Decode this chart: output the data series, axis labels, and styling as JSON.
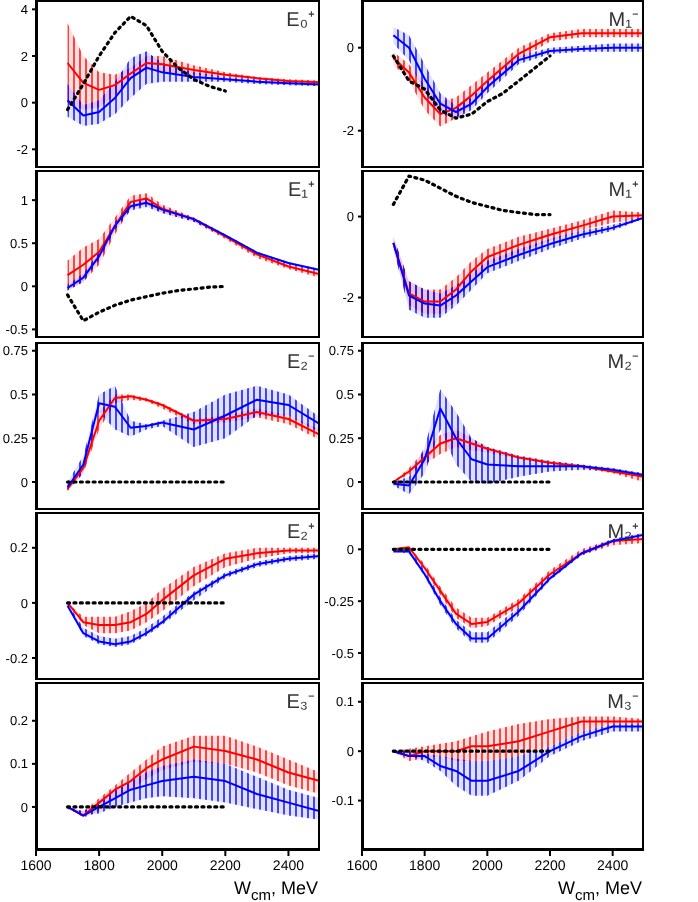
{
  "chart_data": [
    {
      "type": "line",
      "title": "E₀⁺",
      "x": [
        1700,
        1750,
        1800,
        1850,
        1900,
        1950,
        2000,
        2100,
        2200,
        2300,
        2400,
        2500
      ],
      "xlim": [
        1600,
        2500
      ],
      "xticks": [
        1600,
        1800,
        2000,
        2200,
        2400
      ],
      "ylim": [
        -2.8,
        4.4
      ],
      "yticks": [
        -2,
        0,
        2,
        4
      ],
      "tick_labels": "y",
      "series": [
        {
          "color": "#ff0000",
          "values": [
            1.7,
            0.85,
            0.55,
            0.75,
            1.25,
            1.7,
            1.65,
            1.4,
            1.2,
            1.05,
            0.93,
            0.88
          ],
          "lower": [
            0,
            -0.3,
            -0.2,
            0.3,
            1.0,
            1.4,
            1.3,
            1.2,
            1.1,
            1.0,
            0.85,
            0.8
          ],
          "upper": [
            3.4,
            2.0,
            1.3,
            1.2,
            1.5,
            2.0,
            2.0,
            1.6,
            1.3,
            1.1,
            1.0,
            0.95
          ]
        },
        {
          "color": "#0000ff",
          "values": [
            0.1,
            -0.55,
            -0.4,
            0.2,
            1.05,
            1.5,
            1.3,
            1.1,
            1.0,
            0.9,
            0.83,
            0.78
          ],
          "lower": [
            -0.6,
            -1.0,
            -0.9,
            -0.5,
            0.2,
            0.8,
            0.9,
            0.9,
            0.9,
            0.8,
            0.75,
            0.7
          ],
          "upper": [
            0.8,
            -0.1,
            0.1,
            0.9,
            1.9,
            2.2,
            1.7,
            1.3,
            1.1,
            1.0,
            0.9,
            0.85
          ]
        },
        {
          "color": "#000000",
          "line_style": "dotted",
          "x": [
            1700,
            1750,
            1800,
            1850,
            1900,
            1950,
            2000,
            2050,
            2100,
            2150,
            2200
          ],
          "values": [
            -0.3,
            0.8,
            2.0,
            3.0,
            3.7,
            3.3,
            2.2,
            1.5,
            1.0,
            0.7,
            0.5
          ]
        }
      ]
    },
    {
      "type": "line",
      "title": "M₁⁻",
      "x": [
        1700,
        1750,
        1800,
        1850,
        1900,
        1950,
        2000,
        2100,
        2200,
        2300,
        2400,
        2500
      ],
      "xlim": [
        1600,
        2500
      ],
      "xticks": [
        1600,
        1800,
        2000,
        2200,
        2400
      ],
      "ylim": [
        -2.9,
        1.15
      ],
      "yticks": [
        -2,
        0
      ],
      "tick_labels": "y",
      "series": [
        {
          "color": "#ff0000",
          "values": [
            -0.25,
            -0.6,
            -1.2,
            -1.6,
            -1.45,
            -1.15,
            -0.8,
            -0.15,
            0.25,
            0.35,
            0.35,
            0.35
          ],
          "lower": [
            -0.4,
            -0.8,
            -1.5,
            -1.9,
            -1.7,
            -1.4,
            -1.0,
            -0.3,
            0.15,
            0.25,
            0.25,
            0.25
          ],
          "upper": [
            -0.1,
            -0.4,
            -0.9,
            -1.3,
            -1.2,
            -0.9,
            -0.6,
            0.0,
            0.35,
            0.45,
            0.45,
            0.45
          ]
        },
        {
          "color": "#0000ff",
          "values": [
            0.3,
            0,
            -0.75,
            -1.35,
            -1.55,
            -1.35,
            -0.95,
            -0.3,
            -0.08,
            -0.03,
            0,
            0
          ],
          "lower": [
            0.1,
            -0.3,
            -1.1,
            -1.6,
            -1.7,
            -1.5,
            -1.1,
            -0.4,
            -0.15,
            -0.1,
            -0.1,
            -0.1
          ],
          "upper": [
            0.5,
            0.3,
            -0.4,
            -1.1,
            -1.4,
            -1.2,
            -0.8,
            -0.2,
            0.0,
            0.05,
            0.1,
            0.1
          ]
        },
        {
          "color": "#000000",
          "line_style": "dotted",
          "x": [
            1700,
            1750,
            1800,
            1850,
            1900,
            1950,
            2000,
            2050,
            2100,
            2150,
            2200
          ],
          "values": [
            -0.2,
            -0.8,
            -1.0,
            -1.5,
            -1.7,
            -1.6,
            -1.3,
            -1.1,
            -0.8,
            -0.5,
            -0.2
          ]
        }
      ]
    },
    {
      "type": "line",
      "title": "E₁⁺",
      "x": [
        1700,
        1750,
        1800,
        1850,
        1900,
        1950,
        2000,
        2100,
        2200,
        2300,
        2400,
        2500
      ],
      "xlim": [
        1600,
        2500
      ],
      "xticks": [
        1600,
        1800,
        2000,
        2200,
        2400
      ],
      "ylim": [
        -0.6,
        1.35
      ],
      "yticks": [
        -0.5,
        0,
        0.5,
        1
      ],
      "tick_labels": "y",
      "series": [
        {
          "color": "#ff0000",
          "values": [
            0.13,
            0.25,
            0.4,
            0.7,
            0.98,
            1.02,
            0.9,
            0.78,
            0.58,
            0.37,
            0.23,
            0.14
          ],
          "lower": [
            -0.05,
            0.05,
            0.25,
            0.6,
            0.9,
            0.95,
            0.85,
            0.75,
            0.55,
            0.33,
            0.2,
            0.1
          ],
          "upper": [
            0.3,
            0.45,
            0.55,
            0.8,
            1.05,
            1.08,
            0.95,
            0.8,
            0.6,
            0.4,
            0.25,
            0.17
          ]
        },
        {
          "color": "#0000ff",
          "values": [
            -0.02,
            0.1,
            0.35,
            0.7,
            0.93,
            0.97,
            0.89,
            0.78,
            0.59,
            0.39,
            0.27,
            0.19
          ],
          "lower": [
            -0.05,
            0.05,
            0.3,
            0.65,
            0.88,
            0.92,
            0.85,
            0.75,
            0.57,
            0.38,
            0.25,
            0.17
          ],
          "upper": [
            0.02,
            0.15,
            0.4,
            0.75,
            0.98,
            1.02,
            0.92,
            0.8,
            0.6,
            0.4,
            0.28,
            0.2
          ]
        },
        {
          "color": "#000000",
          "line_style": "dotted",
          "x": [
            1700,
            1750,
            1800,
            1850,
            1900,
            1950,
            2000,
            2050,
            2100,
            2150,
            2200
          ],
          "values": [
            -0.1,
            -0.4,
            -0.3,
            -0.22,
            -0.16,
            -0.12,
            -0.08,
            -0.05,
            -0.03,
            -0.01,
            0
          ]
        }
      ]
    },
    {
      "type": "line",
      "title": "M₁⁺",
      "x": [
        1700,
        1750,
        1800,
        1850,
        1900,
        1950,
        2000,
        2100,
        2200,
        2300,
        2400,
        2500
      ],
      "xlim": [
        1600,
        2500
      ],
      "xticks": [
        1600,
        1800,
        2000,
        2200,
        2400
      ],
      "ylim": [
        -3,
        1.15
      ],
      "yticks": [
        -2,
        0
      ],
      "tick_labels": "y",
      "series": [
        {
          "color": "#ff0000",
          "values": [
            -0.65,
            -1.9,
            -2.1,
            -2.1,
            -1.8,
            -1.35,
            -1.0,
            -0.7,
            -0.45,
            -0.23,
            0,
            0.03
          ],
          "lower": [
            -0.8,
            -2.2,
            -2.4,
            -2.4,
            -2.1,
            -1.6,
            -1.2,
            -0.9,
            -0.6,
            -0.35,
            -0.15,
            -0.05
          ],
          "upper": [
            -0.5,
            -1.6,
            -1.8,
            -1.8,
            -1.5,
            -1.1,
            -0.8,
            -0.5,
            -0.3,
            -0.1,
            0.15,
            0.1
          ]
        },
        {
          "color": "#0000ff",
          "values": [
            -0.65,
            -1.95,
            -2.15,
            -2.2,
            -1.95,
            -1.6,
            -1.25,
            -0.95,
            -0.68,
            -0.45,
            -0.28,
            -0.03
          ],
          "lower": [
            -0.8,
            -2.3,
            -2.5,
            -2.5,
            -2.2,
            -1.8,
            -1.4,
            -1.1,
            -0.8,
            -0.55,
            -0.35,
            -0.05
          ],
          "upper": [
            -0.5,
            -1.6,
            -1.8,
            -1.9,
            -1.7,
            -1.4,
            -1.1,
            -0.8,
            -0.55,
            -0.35,
            -0.2,
            0.0
          ]
        },
        {
          "color": "#000000",
          "line_style": "dotted",
          "x": [
            1700,
            1750,
            1800,
            1850,
            1900,
            1950,
            2000,
            2050,
            2100,
            2150,
            2200
          ],
          "values": [
            0.3,
            1.0,
            0.9,
            0.7,
            0.5,
            0.35,
            0.25,
            0.15,
            0.1,
            0.05,
            0.05
          ]
        }
      ]
    },
    {
      "type": "line",
      "title": "E₂⁻",
      "x": [
        1700,
        1750,
        1800,
        1850,
        1900,
        1950,
        2000,
        2100,
        2200,
        2300,
        2400,
        2500
      ],
      "xlim": [
        1600,
        2500
      ],
      "xticks": [
        1600,
        1800,
        2000,
        2200,
        2400
      ],
      "ylim": [
        -0.16,
        0.8
      ],
      "yticks": [
        0,
        0.25,
        0.5,
        0.75
      ],
      "tick_labels": "y",
      "series": [
        {
          "color": "#ff0000",
          "values": [
            -0.04,
            0.08,
            0.35,
            0.48,
            0.49,
            0.47,
            0.44,
            0.35,
            0.36,
            0.4,
            0.36,
            0.27
          ],
          "lower": [
            -0.05,
            0.05,
            0.3,
            0.45,
            0.47,
            0.46,
            0.42,
            0.33,
            0.34,
            0.37,
            0.33,
            0.24
          ],
          "upper": [
            -0.02,
            0.1,
            0.4,
            0.5,
            0.5,
            0.48,
            0.45,
            0.36,
            0.38,
            0.42,
            0.38,
            0.3
          ]
        },
        {
          "color": "#0000ff",
          "values": [
            -0.03,
            0.1,
            0.45,
            0.43,
            0.31,
            0.32,
            0.34,
            0.3,
            0.38,
            0.47,
            0.44,
            0.33
          ],
          "lower": [
            -0.05,
            0.05,
            0.4,
            0.3,
            0.26,
            0.3,
            0.32,
            0.2,
            0.25,
            0.38,
            0.38,
            0.28
          ],
          "upper": [
            0,
            0.15,
            0.5,
            0.55,
            0.35,
            0.33,
            0.35,
            0.4,
            0.5,
            0.55,
            0.5,
            0.37
          ]
        },
        {
          "color": "#000000",
          "line_style": "dotted",
          "x": [
            1700,
            1750,
            1800,
            1850,
            1900,
            1950,
            2000,
            2050,
            2100,
            2150,
            2200
          ],
          "values": [
            0,
            0,
            0,
            0,
            0,
            0,
            0,
            0,
            0,
            0,
            0
          ]
        }
      ]
    },
    {
      "type": "line",
      "title": "M₂⁻",
      "x": [
        1700,
        1750,
        1800,
        1850,
        1900,
        1950,
        2000,
        2100,
        2200,
        2300,
        2400,
        2500
      ],
      "xlim": [
        1600,
        2500
      ],
      "xticks": [
        1600,
        1800,
        2000,
        2200,
        2400
      ],
      "ylim": [
        -0.16,
        0.8
      ],
      "yticks": [
        0,
        0.25,
        0.5,
        0.75
      ],
      "tick_labels": "y",
      "series": [
        {
          "color": "#ff0000",
          "values": [
            0,
            0.06,
            0.14,
            0.22,
            0.25,
            0.22,
            0.19,
            0.14,
            0.11,
            0.09,
            0.06,
            0.03
          ],
          "lower": [
            0,
            0.04,
            0.1,
            0.16,
            0.2,
            0.18,
            0.17,
            0.13,
            0.1,
            0.08,
            0.05,
            0
          ],
          "upper": [
            0,
            0.08,
            0.18,
            0.27,
            0.3,
            0.25,
            0.2,
            0.15,
            0.12,
            0.1,
            0.07,
            0.05
          ]
        },
        {
          "color": "#0000ff",
          "values": [
            -0.01,
            -0.02,
            0.13,
            0.42,
            0.25,
            0.13,
            0.1,
            0.09,
            0.09,
            0.09,
            0.07,
            0.04
          ],
          "lower": [
            -0.02,
            -0.07,
            0.05,
            0.3,
            0.1,
            0,
            -0.01,
            0.03,
            0.06,
            0.07,
            0.06,
            0.03
          ],
          "upper": [
            0,
            0.03,
            0.2,
            0.53,
            0.4,
            0.25,
            0.2,
            0.15,
            0.12,
            0.1,
            0.08,
            0.05
          ]
        },
        {
          "color": "#000000",
          "line_style": "dotted",
          "x": [
            1700,
            1750,
            1800,
            1850,
            1900,
            1950,
            2000,
            2050,
            2100,
            2150,
            2200
          ],
          "values": [
            0,
            0,
            0,
            0,
            0,
            0,
            0,
            0,
            0,
            0,
            0
          ]
        }
      ]
    },
    {
      "type": "line",
      "title": "E₂⁺",
      "x": [
        1700,
        1750,
        1800,
        1850,
        1900,
        1950,
        2000,
        2100,
        2200,
        2300,
        2400,
        2500
      ],
      "xlim": [
        1600,
        2500
      ],
      "xticks": [
        1600,
        1800,
        2000,
        2200,
        2400
      ],
      "ylim": [
        -0.28,
        0.33
      ],
      "yticks": [
        -0.2,
        0,
        0.2
      ],
      "tick_labels": "y",
      "series": [
        {
          "color": "#ff0000",
          "values": [
            0,
            -0.07,
            -0.08,
            -0.08,
            -0.07,
            -0.04,
            0.01,
            0.1,
            0.16,
            0.18,
            0.19,
            0.19
          ],
          "lower": [
            0,
            -0.08,
            -0.11,
            -0.11,
            -0.1,
            -0.07,
            -0.03,
            0.06,
            0.13,
            0.16,
            0.18,
            0.18
          ],
          "upper": [
            0,
            -0.05,
            -0.05,
            -0.05,
            -0.03,
            0,
            0.05,
            0.13,
            0.18,
            0.2,
            0.2,
            0.2
          ]
        },
        {
          "color": "#0000ff",
          "values": [
            -0.01,
            -0.11,
            -0.14,
            -0.15,
            -0.14,
            -0.11,
            -0.07,
            0.03,
            0.1,
            0.14,
            0.16,
            0.17
          ],
          "lower": [
            -0.01,
            -0.12,
            -0.15,
            -0.16,
            -0.15,
            -0.12,
            -0.08,
            0.01,
            0.09,
            0.13,
            0.15,
            0.16
          ],
          "upper": [
            0,
            -0.09,
            -0.12,
            -0.13,
            -0.12,
            -0.09,
            -0.05,
            0.04,
            0.11,
            0.15,
            0.17,
            0.18
          ]
        },
        {
          "color": "#000000",
          "line_style": "dotted",
          "x": [
            1700,
            1750,
            1800,
            1850,
            1900,
            1950,
            2000,
            2050,
            2100,
            2150,
            2200
          ],
          "values": [
            0,
            0,
            0,
            0,
            0,
            0,
            0,
            0,
            0,
            0,
            0
          ]
        }
      ]
    },
    {
      "type": "line",
      "title": "M₂⁺",
      "x": [
        1700,
        1750,
        1800,
        1850,
        1900,
        1950,
        2000,
        2100,
        2200,
        2300,
        2400,
        2500
      ],
      "xlim": [
        1600,
        2500
      ],
      "xticks": [
        1600,
        1800,
        2000,
        2200,
        2400
      ],
      "ylim": [
        -0.63,
        0.18
      ],
      "yticks": [
        -0.5,
        -0.25,
        0
      ],
      "tick_labels": "y",
      "series": [
        {
          "color": "#ff0000",
          "values": [
            0,
            0.01,
            -0.09,
            -0.2,
            -0.31,
            -0.36,
            -0.35,
            -0.26,
            -0.12,
            -0.02,
            0.04,
            0.05
          ],
          "lower": [
            0,
            0,
            -0.1,
            -0.22,
            -0.33,
            -0.38,
            -0.37,
            -0.28,
            -0.13,
            -0.03,
            0.02,
            0.03
          ],
          "upper": [
            0,
            0.01,
            -0.07,
            -0.18,
            -0.28,
            -0.33,
            -0.33,
            -0.24,
            -0.1,
            0,
            0.05,
            0.06
          ]
        },
        {
          "color": "#0000ff",
          "values": [
            -0.01,
            -0.01,
            -0.12,
            -0.25,
            -0.36,
            -0.43,
            -0.43,
            -0.3,
            -0.14,
            -0.02,
            0.04,
            0.07
          ],
          "lower": [
            -0.01,
            -0.02,
            -0.13,
            -0.27,
            -0.38,
            -0.45,
            -0.45,
            -0.32,
            -0.15,
            -0.03,
            0.03,
            0.06
          ],
          "upper": [
            0,
            0,
            -0.1,
            -0.23,
            -0.34,
            -0.4,
            -0.4,
            -0.28,
            -0.12,
            -0.01,
            0.05,
            0.08
          ]
        },
        {
          "color": "#000000",
          "line_style": "dotted",
          "x": [
            1700,
            1750,
            1800,
            1850,
            1900,
            1950,
            2000,
            2050,
            2100,
            2150,
            2200
          ],
          "values": [
            0,
            0,
            0,
            0,
            0,
            0,
            0,
            0,
            0,
            0,
            0
          ]
        }
      ]
    },
    {
      "type": "line",
      "title": "E₃⁻",
      "xlabel": "W$_{cm}$, MeV",
      "x": [
        1700,
        1750,
        1800,
        1850,
        1900,
        1950,
        2000,
        2100,
        2200,
        2300,
        2400,
        2500
      ],
      "xlim": [
        1600,
        2500
      ],
      "xticks": [
        1600,
        1800,
        2000,
        2200,
        2400
      ],
      "ylim": [
        -0.1,
        0.29
      ],
      "yticks": [
        0,
        0.1,
        0.2
      ],
      "series": [
        {
          "color": "#ff0000",
          "values": [
            0,
            -0.02,
            0.01,
            0.04,
            0.06,
            0.09,
            0.11,
            0.14,
            0.13,
            0.11,
            0.08,
            0.06
          ],
          "lower": [
            0,
            -0.025,
            -0.01,
            0.02,
            0.04,
            0.065,
            0.085,
            0.105,
            0.1,
            0.08,
            0.05,
            0.03
          ],
          "upper": [
            0,
            -0.01,
            0.02,
            0.05,
            0.08,
            0.11,
            0.14,
            0.165,
            0.165,
            0.14,
            0.11,
            0.08
          ]
        },
        {
          "color": "#0000ff",
          "values": [
            0,
            -0.02,
            0,
            0.02,
            0.04,
            0.05,
            0.06,
            0.07,
            0.06,
            0.03,
            0.01,
            -0.01
          ],
          "lower": [
            -0.005,
            -0.02,
            -0.015,
            0,
            0.01,
            0.02,
            0.025,
            0.02,
            0.01,
            -0.005,
            -0.02,
            -0.03
          ],
          "upper": [
            0,
            -0.01,
            0.01,
            0.04,
            0.06,
            0.08,
            0.095,
            0.11,
            0.1,
            0.07,
            0.04,
            0.02
          ]
        },
        {
          "color": "#000000",
          "line_style": "dotted",
          "x": [
            1700,
            1750,
            1800,
            1850,
            1900,
            1950,
            2000,
            2050,
            2100,
            2150,
            2200
          ],
          "values": [
            0,
            0,
            0,
            0,
            0,
            0,
            0,
            0,
            0,
            0,
            0
          ]
        }
      ]
    },
    {
      "type": "line",
      "title": "M₃⁻",
      "xlabel": "W$_{cm}$, MeV",
      "x": [
        1700,
        1750,
        1800,
        1850,
        1900,
        1950,
        2000,
        2100,
        2200,
        2300,
        2400,
        2500
      ],
      "xlim": [
        1600,
        2500
      ],
      "xticks": [
        1600,
        1800,
        2000,
        2200,
        2400
      ],
      "ylim": [
        -0.2,
        0.14
      ],
      "yticks": [
        -0.1,
        0,
        0.1
      ],
      "series": [
        {
          "color": "#ff0000",
          "values": [
            0,
            -0.01,
            0,
            0,
            0,
            0.01,
            0.01,
            0.02,
            0.04,
            0.06,
            0.06,
            0.06
          ],
          "lower": [
            0,
            -0.02,
            -0.015,
            -0.01,
            -0.02,
            -0.02,
            -0.02,
            -0.01,
            0.01,
            0.04,
            0.055,
            0.055
          ],
          "upper": [
            0,
            0.005,
            0.01,
            0.015,
            0.02,
            0.03,
            0.04,
            0.055,
            0.065,
            0.07,
            0.07,
            0.065
          ]
        },
        {
          "color": "#0000ff",
          "values": [
            0,
            -0.01,
            -0.01,
            -0.03,
            -0.04,
            -0.06,
            -0.06,
            -0.04,
            0,
            0.03,
            0.05,
            0.05
          ],
          "lower": [
            0,
            -0.01,
            -0.02,
            -0.04,
            -0.07,
            -0.09,
            -0.09,
            -0.06,
            -0.01,
            0.02,
            0.04,
            0.04
          ],
          "upper": [
            0,
            0,
            -0.005,
            -0.01,
            -0.015,
            -0.02,
            -0.02,
            -0.01,
            0.01,
            0.04,
            0.055,
            0.055
          ]
        },
        {
          "color": "#000000",
          "line_style": "dotted",
          "x": [
            1700,
            1750,
            1800,
            1850,
            1900,
            1950,
            2000,
            2050,
            2100,
            2150,
            2200
          ],
          "values": [
            0,
            0,
            0,
            0,
            0,
            0,
            0,
            0,
            0,
            0,
            0
          ]
        }
      ]
    }
  ]
}
